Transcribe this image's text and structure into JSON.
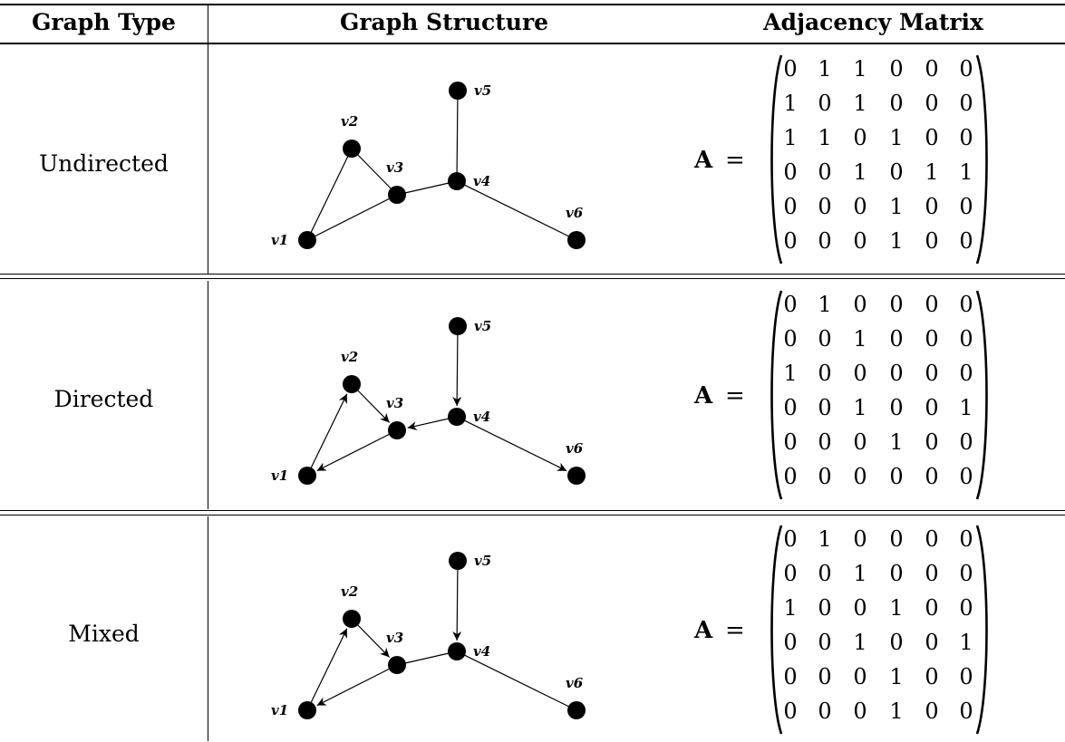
{
  "headers": {
    "type": "Graph Type",
    "structure": "Graph Structure",
    "matrix": "Adjacency Matrix"
  },
  "matrix_symbol": "A",
  "matrix_equals": "=",
  "nodes": [
    {
      "id": "v1",
      "label": "v1"
    },
    {
      "id": "v2",
      "label": "v2"
    },
    {
      "id": "v3",
      "label": "v3"
    },
    {
      "id": "v4",
      "label": "v4"
    },
    {
      "id": "v5",
      "label": "v5"
    },
    {
      "id": "v6",
      "label": "v6"
    }
  ],
  "rows": [
    {
      "type": "Undirected",
      "edges": [
        {
          "from": "v1",
          "to": "v2",
          "arrow": "none"
        },
        {
          "from": "v2",
          "to": "v3",
          "arrow": "none"
        },
        {
          "from": "v1",
          "to": "v3",
          "arrow": "none"
        },
        {
          "from": "v3",
          "to": "v4",
          "arrow": "none"
        },
        {
          "from": "v4",
          "to": "v5",
          "arrow": "none"
        },
        {
          "from": "v4",
          "to": "v6",
          "arrow": "none"
        }
      ],
      "matrix": [
        [
          0,
          1,
          1,
          0,
          0,
          0
        ],
        [
          1,
          0,
          1,
          0,
          0,
          0
        ],
        [
          1,
          1,
          0,
          1,
          0,
          0
        ],
        [
          0,
          0,
          1,
          0,
          1,
          1
        ],
        [
          0,
          0,
          0,
          1,
          0,
          0
        ],
        [
          0,
          0,
          0,
          1,
          0,
          0
        ]
      ]
    },
    {
      "type": "Directed",
      "edges": [
        {
          "from": "v1",
          "to": "v2",
          "arrow": "end"
        },
        {
          "from": "v2",
          "to": "v3",
          "arrow": "end"
        },
        {
          "from": "v3",
          "to": "v1",
          "arrow": "end"
        },
        {
          "from": "v4",
          "to": "v3",
          "arrow": "end"
        },
        {
          "from": "v5",
          "to": "v4",
          "arrow": "end"
        },
        {
          "from": "v4",
          "to": "v6",
          "arrow": "end"
        }
      ],
      "matrix": [
        [
          0,
          1,
          0,
          0,
          0,
          0
        ],
        [
          0,
          0,
          1,
          0,
          0,
          0
        ],
        [
          1,
          0,
          0,
          0,
          0,
          0
        ],
        [
          0,
          0,
          1,
          0,
          0,
          1
        ],
        [
          0,
          0,
          0,
          1,
          0,
          0
        ],
        [
          0,
          0,
          0,
          0,
          0,
          0
        ]
      ]
    },
    {
      "type": "Mixed",
      "edges": [
        {
          "from": "v1",
          "to": "v2",
          "arrow": "end"
        },
        {
          "from": "v2",
          "to": "v3",
          "arrow": "end"
        },
        {
          "from": "v3",
          "to": "v1",
          "arrow": "end"
        },
        {
          "from": "v3",
          "to": "v4",
          "arrow": "none"
        },
        {
          "from": "v5",
          "to": "v4",
          "arrow": "end"
        },
        {
          "from": "v4",
          "to": "v6",
          "arrow": "none"
        }
      ],
      "matrix": [
        [
          0,
          1,
          0,
          0,
          0,
          0
        ],
        [
          0,
          0,
          1,
          0,
          0,
          0
        ],
        [
          1,
          0,
          0,
          1,
          0,
          0
        ],
        [
          0,
          0,
          1,
          0,
          0,
          1
        ],
        [
          0,
          0,
          0,
          1,
          0,
          0
        ],
        [
          0,
          0,
          0,
          1,
          0,
          0
        ]
      ]
    }
  ]
}
